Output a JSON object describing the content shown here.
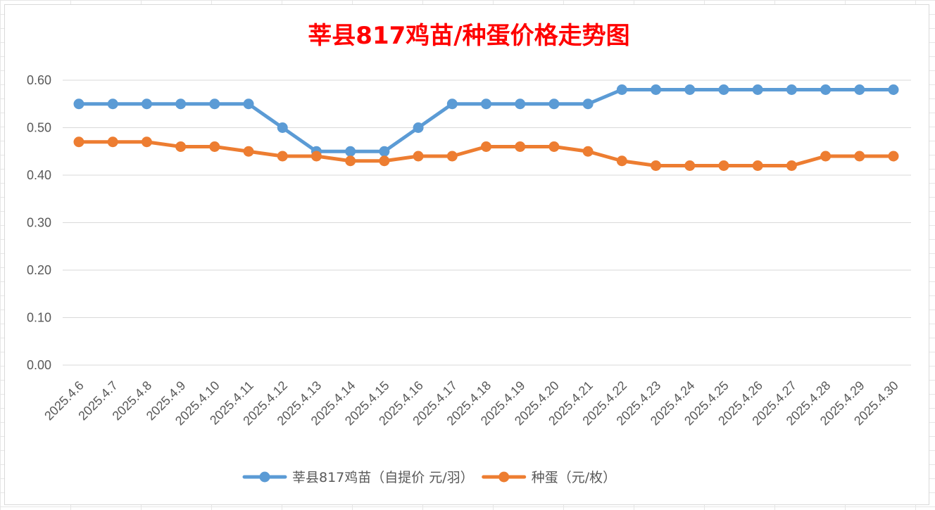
{
  "chart_data": {
    "type": "line",
    "title": "莘县817鸡苗/种蛋价格走势图",
    "xlabel": "",
    "ylabel": "",
    "ylim": [
      0,
      0.6
    ],
    "yticks": [
      "0.00",
      "0.10",
      "0.20",
      "0.30",
      "0.40",
      "0.50",
      "0.60"
    ],
    "grid": true,
    "legend_position": "bottom",
    "categories": [
      "2025.4.6",
      "2025.4.7",
      "2025.4.8",
      "2025.4.9",
      "2025.4.10",
      "2025.4.11",
      "2025.4.12",
      "2025.4.13",
      "2025.4.14",
      "2025.4.15",
      "2025.4.16",
      "2025.4.17",
      "2025.4.18",
      "2025.4.19",
      "2025.4.20",
      "2025.4.21",
      "2025.4.22",
      "2025.4.23",
      "2025.4.24",
      "2025.4.25",
      "2025.4.26",
      "2025.4.27",
      "2025.4.28",
      "2025.4.29",
      "2025.4.30"
    ],
    "series": [
      {
        "name": "莘县817鸡苗（自提价 元/羽）",
        "color": "#5b9bd5",
        "values": [
          0.55,
          0.55,
          0.55,
          0.55,
          0.55,
          0.55,
          0.5,
          0.45,
          0.45,
          0.45,
          0.5,
          0.55,
          0.55,
          0.55,
          0.55,
          0.55,
          0.58,
          0.58,
          0.58,
          0.58,
          0.58,
          0.58,
          0.58,
          0.58,
          0.58
        ]
      },
      {
        "name": "种蛋（元/枚）",
        "color": "#ed7d31",
        "values": [
          0.47,
          0.47,
          0.47,
          0.46,
          0.46,
          0.45,
          0.44,
          0.44,
          0.43,
          0.43,
          0.44,
          0.44,
          0.46,
          0.46,
          0.46,
          0.45,
          0.43,
          0.42,
          0.42,
          0.42,
          0.42,
          0.42,
          0.44,
          0.44,
          0.44
        ]
      }
    ]
  }
}
